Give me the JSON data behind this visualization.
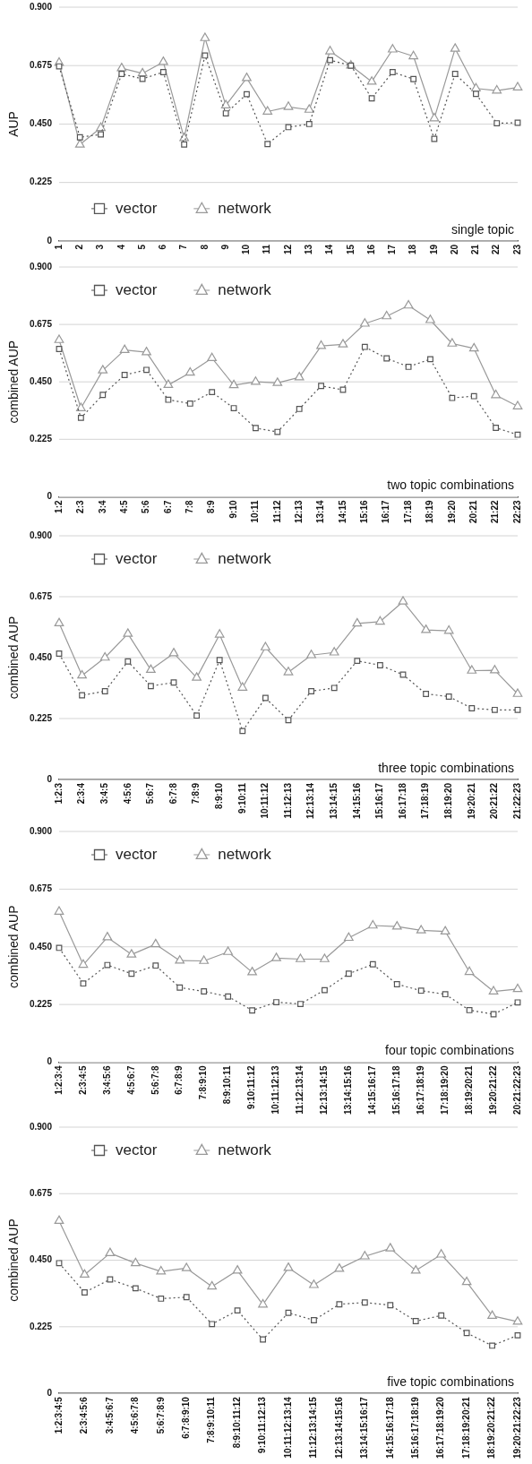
{
  "chart_data": [
    {
      "type": "line",
      "xlabel": "single topic",
      "ylabel": "AUP",
      "grid": "y",
      "legend": "bottom left",
      "ylim": [
        0,
        0.9
      ],
      "yticks": [
        {
          "value": 0,
          "label": "0"
        },
        {
          "value": 0.225,
          "label": "0.225"
        },
        {
          "value": 0.45,
          "label": "0.450"
        },
        {
          "value": 0.675,
          "label": "0.675"
        },
        {
          "value": 0.9,
          "label": "0.900"
        }
      ],
      "categories": [
        "1",
        "2",
        "3",
        "4",
        "5",
        "6",
        "7",
        "8",
        "9",
        "10",
        "11",
        "12",
        "13",
        "14",
        "15",
        "16",
        "17",
        "18",
        "19",
        "20",
        "21",
        "22",
        "23"
      ],
      "series": [
        {
          "name": "vector",
          "color": "#555555",
          "marker": "square",
          "line_style": "dotted",
          "values": [
            0.672,
            0.399,
            0.41,
            0.643,
            0.624,
            0.65,
            0.371,
            0.714,
            0.491,
            0.565,
            0.373,
            0.438,
            0.45,
            0.696,
            0.675,
            0.549,
            0.65,
            0.623,
            0.393,
            0.643,
            0.566,
            0.453,
            0.455
          ]
        },
        {
          "name": "network",
          "color": "#999999",
          "marker": "triangle",
          "line_style": "solid",
          "values": [
            0.686,
            0.371,
            0.435,
            0.665,
            0.645,
            0.689,
            0.396,
            0.781,
            0.522,
            0.627,
            0.498,
            0.516,
            0.505,
            0.73,
            0.675,
            0.613,
            0.737,
            0.711,
            0.472,
            0.74,
            0.587,
            0.579,
            0.591
          ]
        }
      ]
    },
    {
      "type": "line",
      "xlabel": "two topic combinations",
      "ylabel": "combined AUP",
      "grid": "y",
      "legend": "top left",
      "ylim": [
        0,
        0.9
      ],
      "yticks": [
        {
          "value": 0,
          "label": "0"
        },
        {
          "value": 0.225,
          "label": "0.225"
        },
        {
          "value": 0.45,
          "label": "0.450"
        },
        {
          "value": 0.675,
          "label": "0.675"
        },
        {
          "value": 0.9,
          "label": "0.900"
        }
      ],
      "categories": [
        "1:2",
        "2:3",
        "3:4",
        "4:5",
        "5:6",
        "6:7",
        "7:8",
        "8:9",
        "9:10",
        "10:11",
        "11:12",
        "12:13",
        "13:14",
        "14:15",
        "15:16",
        "16:17",
        "17:18",
        "18:19",
        "19:20",
        "20:21",
        "21:22",
        "22:23"
      ],
      "series": [
        {
          "name": "vector",
          "color": "#555555",
          "marker": "square",
          "line_style": "dotted",
          "values": [
            0.579,
            0.309,
            0.399,
            0.477,
            0.497,
            0.38,
            0.365,
            0.41,
            0.347,
            0.269,
            0.254,
            0.344,
            0.434,
            0.419,
            0.587,
            0.542,
            0.509,
            0.539,
            0.387,
            0.394,
            0.27,
            0.243
          ]
        },
        {
          "name": "network",
          "color": "#999999",
          "marker": "triangle",
          "line_style": "solid",
          "values": [
            0.614,
            0.347,
            0.495,
            0.575,
            0.566,
            0.438,
            0.486,
            0.543,
            0.437,
            0.45,
            0.446,
            0.468,
            0.591,
            0.597,
            0.678,
            0.707,
            0.749,
            0.692,
            0.6,
            0.581,
            0.398,
            0.354
          ]
        }
      ]
    },
    {
      "type": "line",
      "xlabel": "three topic combinations",
      "ylabel": "combined AUP",
      "grid": "y",
      "legend": "top left",
      "ylim": [
        0,
        0.9
      ],
      "yticks": [
        {
          "value": 0,
          "label": "0"
        },
        {
          "value": 0.225,
          "label": "0.225"
        },
        {
          "value": 0.45,
          "label": "0.450"
        },
        {
          "value": 0.675,
          "label": "0.675"
        },
        {
          "value": 0.9,
          "label": "0.900"
        }
      ],
      "categories": [
        "1:2:3",
        "2:3:4",
        "3:4:5",
        "4:5:6",
        "5:6:7",
        "6:7:8",
        "7:8:9",
        "8:9:10",
        "9:10:11",
        "10:11:12",
        "11:12:13",
        "12:13:14",
        "13:14:15",
        "14:15:16",
        "15:16:17",
        "16:17:18",
        "17:18:19",
        "18:19:20",
        "19:20:21",
        "20:21:22",
        "21:22:23"
      ],
      "series": [
        {
          "name": "vector",
          "color": "#555555",
          "marker": "square",
          "line_style": "dotted",
          "values": [
            0.465,
            0.311,
            0.326,
            0.436,
            0.345,
            0.358,
            0.236,
            0.441,
            0.179,
            0.301,
            0.219,
            0.326,
            0.338,
            0.438,
            0.422,
            0.387,
            0.316,
            0.306,
            0.263,
            0.257,
            0.257
          ]
        },
        {
          "name": "network",
          "color": "#999999",
          "marker": "triangle",
          "line_style": "solid",
          "values": [
            0.577,
            0.384,
            0.45,
            0.538,
            0.405,
            0.466,
            0.376,
            0.535,
            0.339,
            0.488,
            0.396,
            0.459,
            0.469,
            0.576,
            0.583,
            0.657,
            0.552,
            0.549,
            0.402,
            0.403,
            0.316
          ]
        }
      ]
    },
    {
      "type": "line",
      "xlabel": "four topic combinations",
      "ylabel": "combined AUP",
      "grid": "y",
      "legend": "top left",
      "ylim": [
        0,
        0.9
      ],
      "yticks": [
        {
          "value": 0,
          "label": "0"
        },
        {
          "value": 0.225,
          "label": "0.225"
        },
        {
          "value": 0.45,
          "label": "0.450"
        },
        {
          "value": 0.675,
          "label": "0.675"
        },
        {
          "value": 0.9,
          "label": "0.900"
        }
      ],
      "categories": [
        "1:2:3:4",
        "2:3:4:5",
        "3:4:5:6",
        "4:5:6:7",
        "5:6:7:8",
        "6:7:8:9",
        "7:8:9:10",
        "8:9:10:11",
        "9:10:11:12",
        "10:11:12:13",
        "11:12:13:14",
        "12:13:14:15",
        "13:14:15:16",
        "14:15:16:17",
        "15:16:17:18",
        "16:17:18:19",
        "17:18:19:20",
        "18:19:20:21",
        "19:20:21:22",
        "20:21:22:23"
      ],
      "series": [
        {
          "name": "vector",
          "color": "#555555",
          "marker": "square",
          "line_style": "dotted",
          "values": [
            0.446,
            0.307,
            0.379,
            0.345,
            0.377,
            0.291,
            0.276,
            0.256,
            0.202,
            0.234,
            0.227,
            0.281,
            0.345,
            0.382,
            0.304,
            0.279,
            0.265,
            0.203,
            0.187,
            0.233
          ]
        },
        {
          "name": "network",
          "color": "#999999",
          "marker": "triangle",
          "line_style": "solid",
          "values": [
            0.587,
            0.38,
            0.487,
            0.42,
            0.46,
            0.396,
            0.395,
            0.43,
            0.351,
            0.406,
            0.402,
            0.402,
            0.485,
            0.533,
            0.529,
            0.514,
            0.51,
            0.352,
            0.276,
            0.285
          ]
        }
      ]
    },
    {
      "type": "line",
      "xlabel": "five topic combinations",
      "ylabel": "combined AUP",
      "grid": "y",
      "legend": "top left",
      "ylim": [
        0,
        0.9
      ],
      "yticks": [
        {
          "value": 0,
          "label": "0"
        },
        {
          "value": 0.225,
          "label": "0.225"
        },
        {
          "value": 0.45,
          "label": "0.450"
        },
        {
          "value": 0.675,
          "label": "0.675"
        },
        {
          "value": 0.9,
          "label": "0.900"
        }
      ],
      "categories": [
        "1:2:3:4:5",
        "2:3:4:5:6",
        "3:4:5:6:7",
        "4:5:6:7:8",
        "5:6:7:8:9",
        "6:7:8:9:10",
        "7:8:9:10:11",
        "8:9:10:11:12",
        "9:10:11:12:13",
        "10:11:12:13:14",
        "11:12:13:14:15",
        "12:13:14:15:16",
        "13:14:15:16:17",
        "14:15:16:17:18",
        "15:16:17:18:19",
        "16:17:18:19:20",
        "17:18:19:20:21",
        "18:19:20:21:22",
        "19:20:21:22:23"
      ],
      "series": [
        {
          "name": "vector",
          "color": "#555555",
          "marker": "square",
          "line_style": "dotted",
          "values": [
            0.44,
            0.341,
            0.385,
            0.355,
            0.32,
            0.325,
            0.234,
            0.28,
            0.182,
            0.272,
            0.247,
            0.301,
            0.307,
            0.298,
            0.244,
            0.263,
            0.204,
            0.161,
            0.196
          ]
        },
        {
          "name": "network",
          "color": "#999999",
          "marker": "triangle",
          "line_style": "solid",
          "values": [
            0.583,
            0.401,
            0.474,
            0.44,
            0.412,
            0.423,
            0.361,
            0.415,
            0.3,
            0.424,
            0.366,
            0.421,
            0.463,
            0.49,
            0.415,
            0.469,
            0.376,
            0.262,
            0.242
          ]
        }
      ]
    }
  ]
}
